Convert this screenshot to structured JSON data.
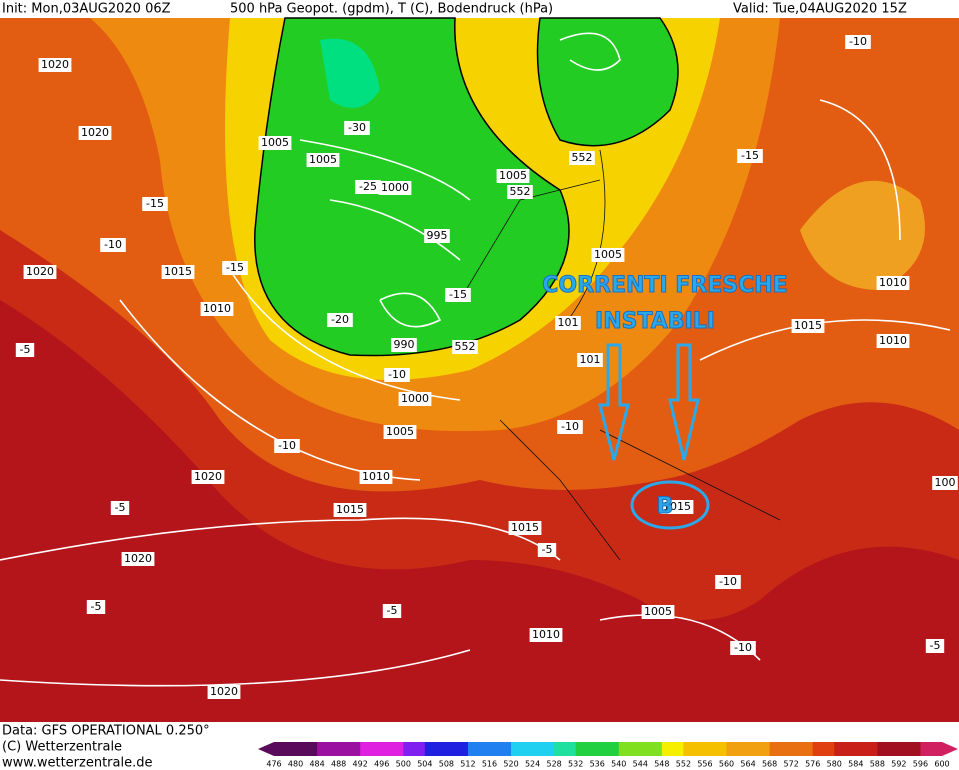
{
  "header": {
    "init": "Init: Mon,03AUG2020 06Z",
    "title": "500 hPa Geopot. (gpdm), T (C), Bodendruck (hPa)",
    "valid": "Valid: Tue,04AUG2020 15Z"
  },
  "footer": {
    "data": "Data: GFS OPERATIONAL 0.250°",
    "copyright": "(C) Wetterzentrale",
    "url": "www.wetterzentrale.de"
  },
  "annotations": {
    "line1": "CORRENTI  FRESCHE",
    "line2": "INSTABILI",
    "low": "B"
  },
  "colorbar": {
    "labels": [
      "476",
      "480",
      "484",
      "488",
      "492",
      "496",
      "500",
      "504",
      "508",
      "512",
      "516",
      "520",
      "524",
      "528",
      "532",
      "536",
      "540",
      "544",
      "548",
      "552",
      "556",
      "560",
      "564",
      "568",
      "572",
      "576",
      "580",
      "584",
      "588",
      "592",
      "596",
      "600"
    ]
  },
  "map_labels": [
    "1020",
    "1020",
    "1005",
    "1005",
    "-30",
    "-25",
    "1000",
    "995",
    "1005",
    "552",
    "552",
    "-15",
    "-20",
    "990",
    "552",
    "-15",
    "-10",
    "1015",
    "-15",
    "1020",
    "1010",
    "-5",
    "-10",
    "1000",
    "1005",
    "-10",
    "1020",
    "1010",
    "1015",
    "-5",
    "1015",
    "-5",
    "1020",
    "-5",
    "-5",
    "1005",
    "1010",
    "-10",
    "-10",
    "1020",
    "-10",
    "-15",
    "1005",
    "1010",
    "1015",
    "1010",
    "-5",
    "100",
    "-10",
    "1015",
    "101",
    "101"
  ]
}
